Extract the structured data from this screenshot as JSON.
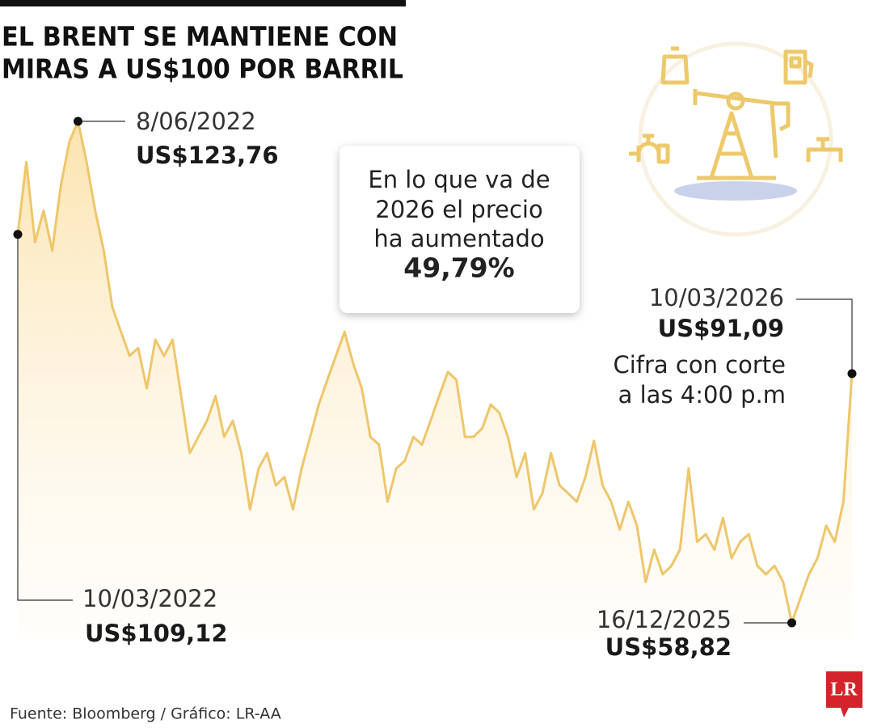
{
  "chart_data": {
    "type": "line",
    "title": [
      "EL BRENT SE MANTIENE CON",
      "MIRAS A US$100 POR BARRIL"
    ],
    "color": "#eec66b",
    "categories": [
      "10/03/2022",
      null,
      null,
      null,
      null,
      null,
      null,
      "8/06/2022",
      null,
      null,
      null,
      null,
      null,
      null,
      null,
      null,
      null,
      null,
      null,
      null,
      null,
      null,
      null,
      null,
      null,
      null,
      null,
      null,
      null,
      null,
      null,
      null,
      null,
      null,
      null,
      null,
      null,
      null,
      null,
      null,
      null,
      null,
      null,
      null,
      null,
      null,
      null,
      null,
      null,
      null,
      null,
      null,
      null,
      null,
      null,
      null,
      null,
      null,
      null,
      null,
      null,
      null,
      null,
      null,
      null,
      null,
      null,
      null,
      null,
      null,
      null,
      null,
      null,
      null,
      null,
      null,
      null,
      null,
      null,
      null,
      null,
      null,
      null,
      null,
      null,
      null,
      null,
      null,
      null,
      null,
      "16/12/2025",
      null,
      null,
      null,
      null,
      null,
      null,
      "10/03/2026"
    ],
    "values": [
      109.12,
      118.5,
      108.1,
      112.2,
      107,
      115.4,
      121.1,
      123.76,
      118.5,
      112.2,
      107,
      99.7,
      96.5,
      93.4,
      94.4,
      89.2,
      95.5,
      93.4,
      95.5,
      88.2,
      80.8,
      82.9,
      85,
      88.2,
      82.9,
      85,
      80.8,
      73.5,
      78.8,
      80.8,
      76.6,
      77.7,
      73.5,
      78.8,
      82.9,
      87.1,
      90.3,
      93.4,
      96.5,
      92.4,
      89.2,
      82.9,
      81.9,
      74.5,
      78.8,
      79.8,
      82.9,
      81.9,
      85,
      88.2,
      91.3,
      90.3,
      82.9,
      82.9,
      84,
      87.1,
      86,
      82.9,
      77.7,
      80.8,
      73.5,
      75.6,
      80.8,
      76.6,
      75.6,
      74.5,
      77.7,
      82.4,
      76.6,
      74.5,
      70.9,
      74.5,
      71.4,
      64.1,
      68.3,
      65.1,
      66.2,
      68.3,
      78.8,
      69.3,
      70.3,
      68.3,
      72.4,
      67.2,
      69.3,
      70.3,
      66.2,
      65.1,
      66.2,
      64.1,
      58.82,
      62,
      65.1,
      67.2,
      71.4,
      69.3,
      74.5,
      91.09
    ],
    "value_labels": [
      "US$109,12",
      null,
      null,
      null,
      null,
      null,
      null,
      "US$123,76",
      null,
      null,
      null,
      null,
      null,
      null,
      null,
      null,
      null,
      null,
      null,
      null,
      null,
      null,
      null,
      null,
      null,
      null,
      null,
      null,
      null,
      null,
      null,
      null,
      null,
      null,
      null,
      null,
      null,
      null,
      null,
      null,
      null,
      null,
      null,
      null,
      null,
      null,
      null,
      null,
      null,
      null,
      null,
      null,
      null,
      null,
      null,
      null,
      null,
      null,
      null,
      null,
      null,
      null,
      null,
      null,
      null,
      null,
      null,
      null,
      null,
      null,
      null,
      null,
      null,
      null,
      null,
      null,
      null,
      null,
      null,
      null,
      null,
      null,
      null,
      null,
      null,
      null,
      null,
      null,
      null,
      null,
      "US$58,82",
      null,
      null,
      null,
      null,
      null,
      null,
      "US$91,09"
    ],
    "callout": [
      "En lo que va de",
      "2026 el precio",
      "ha aumentado"
    ],
    "callout_value": "49,79%",
    "note": [
      "Cifra con corte",
      "a las 4:00 p.m"
    ],
    "source": "Fuente: Bloomberg / Gráfico: LR-AA",
    "logo": "LR"
  }
}
